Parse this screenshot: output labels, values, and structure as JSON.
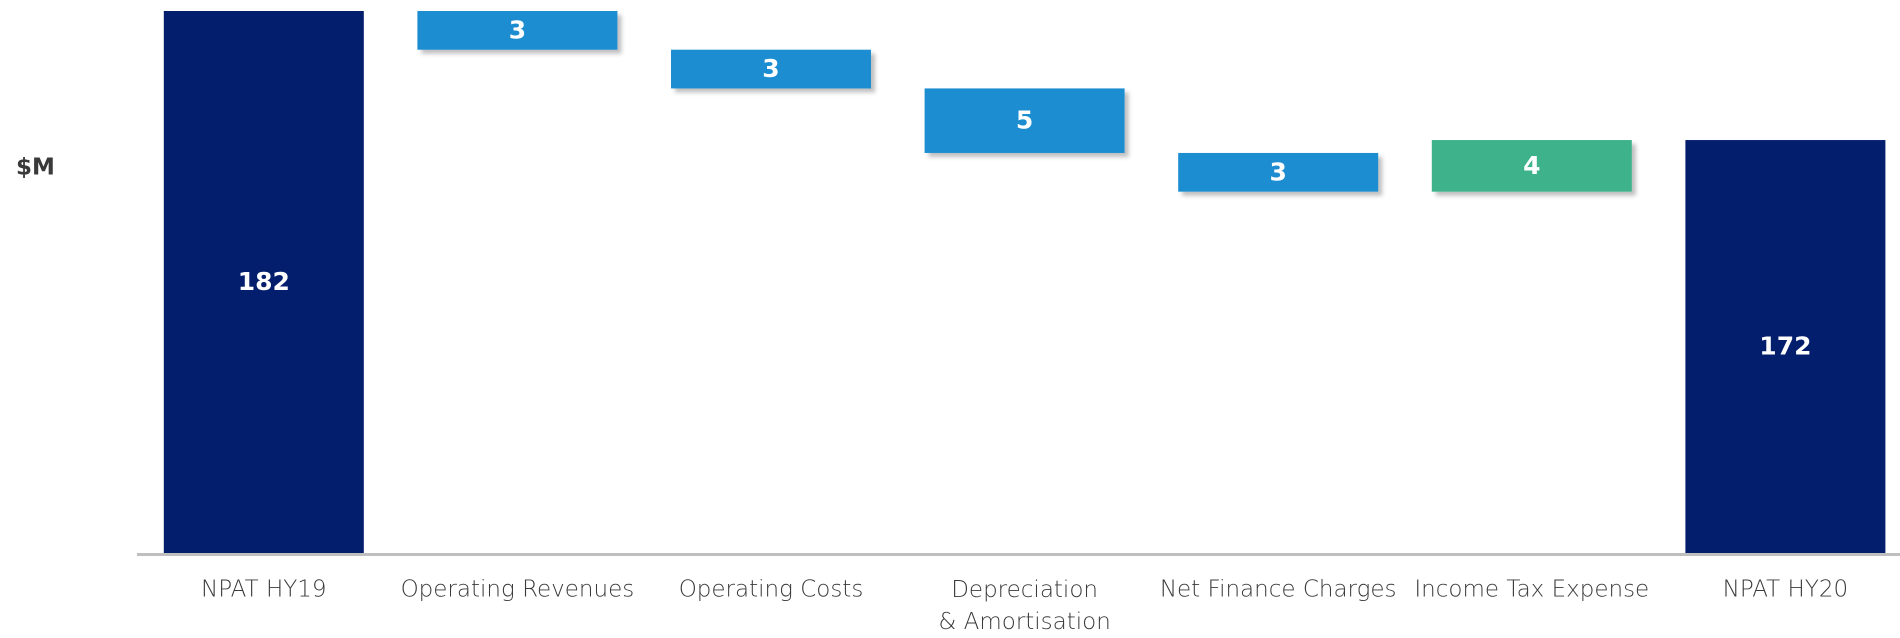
{
  "chart_data": {
    "type": "waterfall",
    "y_label": "$M",
    "categories": [
      "NPAT HY19",
      "Operating Revenues",
      "Operating Costs",
      "Depreciation & Amortisation",
      "Net Finance Charges",
      "Income Tax Expense",
      "NPAT HY20"
    ],
    "measure": [
      "total",
      "relative",
      "relative",
      "relative",
      "relative",
      "relative",
      "total"
    ],
    "values": [
      182,
      -3,
      -3,
      -5,
      -3,
      4,
      172
    ],
    "value_labels": [
      "182",
      "3",
      "3",
      "5",
      "3",
      "4",
      "172"
    ],
    "colors": {
      "total": "#041e6e",
      "decrease": "#1a8dd0",
      "increase": "#3db28b"
    },
    "ylim": [
      140,
      182
    ],
    "grid": false
  }
}
